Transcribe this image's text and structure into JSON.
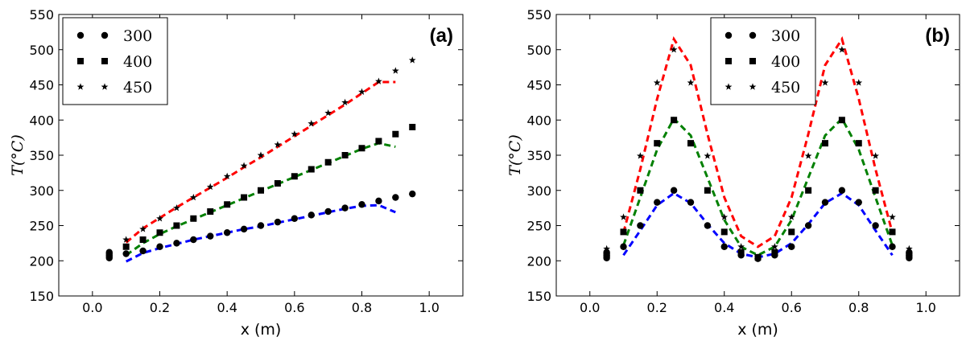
{
  "chart_data": [
    {
      "type": "line",
      "panel_label": "(a)",
      "xlabel": "x (m)",
      "ylabel": "T(°C)",
      "xlim": [
        -0.1,
        1.1
      ],
      "ylim": [
        150,
        550
      ],
      "xticks": [
        "0.0",
        "0.2",
        "0.4",
        "0.6",
        "0.8",
        "1.0"
      ],
      "yticks": [
        "150",
        "200",
        "250",
        "300",
        "350",
        "400",
        "450",
        "500",
        "550"
      ],
      "grid": false,
      "legend": {
        "placement": "top-left",
        "entries": [
          "300",
          "400",
          "450"
        ]
      },
      "series": [
        {
          "name": "300",
          "color": "#0000ff",
          "marker": "circle",
          "points": [
            [
              0.05,
              204
            ],
            [
              0.05,
              206
            ],
            [
              0.05,
              208
            ],
            [
              0.05,
              210
            ],
            [
              0.05,
              212
            ],
            [
              0.1,
              210
            ],
            [
              0.15,
              214
            ],
            [
              0.2,
              220
            ],
            [
              0.25,
              225
            ],
            [
              0.3,
              230
            ],
            [
              0.35,
              235
            ],
            [
              0.4,
              240
            ],
            [
              0.45,
              245
            ],
            [
              0.5,
              250
            ],
            [
              0.55,
              255
            ],
            [
              0.6,
              260
            ],
            [
              0.65,
              265
            ],
            [
              0.7,
              270
            ],
            [
              0.75,
              275
            ],
            [
              0.8,
              280
            ],
            [
              0.85,
              285
            ],
            [
              0.9,
              290
            ],
            [
              0.95,
              295
            ]
          ],
          "line": [
            [
              0.1,
              199
            ],
            [
              0.15,
              211
            ],
            [
              0.2,
              218
            ],
            [
              0.25,
              224
            ],
            [
              0.3,
              230
            ],
            [
              0.35,
              235
            ],
            [
              0.4,
              240
            ],
            [
              0.45,
              245
            ],
            [
              0.5,
              249
            ],
            [
              0.55,
              254
            ],
            [
              0.6,
              259
            ],
            [
              0.65,
              264
            ],
            [
              0.7,
              269
            ],
            [
              0.75,
              274
            ],
            [
              0.8,
              278
            ],
            [
              0.85,
              279
            ],
            [
              0.9,
              269
            ]
          ]
        },
        {
          "name": "400",
          "color": "#008000",
          "marker": "square",
          "points": [
            [
              0.1,
              220
            ],
            [
              0.15,
              230
            ],
            [
              0.2,
              240
            ],
            [
              0.25,
              250
            ],
            [
              0.3,
              260
            ],
            [
              0.35,
              270
            ],
            [
              0.4,
              280
            ],
            [
              0.45,
              290
            ],
            [
              0.5,
              300
            ],
            [
              0.55,
              310
            ],
            [
              0.6,
              320
            ],
            [
              0.65,
              330
            ],
            [
              0.7,
              340
            ],
            [
              0.75,
              350
            ],
            [
              0.8,
              360
            ],
            [
              0.85,
              370
            ],
            [
              0.9,
              380
            ],
            [
              0.95,
              390
            ]
          ],
          "line": [
            [
              0.1,
              208
            ],
            [
              0.15,
              225
            ],
            [
              0.2,
              238
            ],
            [
              0.25,
              249
            ],
            [
              0.3,
              259
            ],
            [
              0.35,
              269
            ],
            [
              0.4,
              279
            ],
            [
              0.45,
              289
            ],
            [
              0.5,
              299
            ],
            [
              0.55,
              309
            ],
            [
              0.6,
              319
            ],
            [
              0.65,
              329
            ],
            [
              0.7,
              339
            ],
            [
              0.75,
              349
            ],
            [
              0.8,
              359
            ],
            [
              0.85,
              367
            ],
            [
              0.9,
              362
            ]
          ]
        },
        {
          "name": "450",
          "color": "#ff0000",
          "marker": "star",
          "points": [
            [
              0.1,
              230
            ],
            [
              0.15,
              245
            ],
            [
              0.2,
              260
            ],
            [
              0.25,
              275
            ],
            [
              0.3,
              290
            ],
            [
              0.35,
              305
            ],
            [
              0.4,
              320
            ],
            [
              0.45,
              335
            ],
            [
              0.5,
              350
            ],
            [
              0.55,
              365
            ],
            [
              0.6,
              380
            ],
            [
              0.65,
              395
            ],
            [
              0.7,
              410
            ],
            [
              0.75,
              425
            ],
            [
              0.8,
              440
            ],
            [
              0.85,
              455
            ],
            [
              0.9,
              470
            ],
            [
              0.95,
              485
            ]
          ],
          "line": [
            [
              0.1,
              226
            ],
            [
              0.15,
              246
            ],
            [
              0.2,
              261
            ],
            [
              0.25,
              276
            ],
            [
              0.3,
              290
            ],
            [
              0.35,
              304
            ],
            [
              0.4,
              318
            ],
            [
              0.45,
              333
            ],
            [
              0.5,
              347
            ],
            [
              0.55,
              362
            ],
            [
              0.6,
              377
            ],
            [
              0.65,
              392
            ],
            [
              0.7,
              407
            ],
            [
              0.75,
              422
            ],
            [
              0.8,
              438
            ],
            [
              0.85,
              454
            ],
            [
              0.9,
              454
            ]
          ]
        }
      ]
    },
    {
      "type": "line",
      "panel_label": "(b)",
      "xlabel": "x (m)",
      "ylabel": "T(°C)",
      "xlim": [
        -0.1,
        1.1
      ],
      "ylim": [
        150,
        550
      ],
      "xticks": [
        "0.0",
        "0.2",
        "0.4",
        "0.6",
        "0.8",
        "1.0"
      ],
      "yticks": [
        "150",
        "200",
        "250",
        "300",
        "350",
        "400",
        "450",
        "500",
        "550"
      ],
      "grid": false,
      "legend": {
        "placement": "top-center",
        "entries": [
          "300",
          "400",
          "450"
        ]
      },
      "series": [
        {
          "name": "300",
          "color": "#0000ff",
          "marker": "circle",
          "points": [
            [
              0.05,
              204
            ],
            [
              0.05,
              206
            ],
            [
              0.05,
              208
            ],
            [
              0.05,
              210
            ],
            [
              0.05,
              212
            ],
            [
              0.1,
              220
            ],
            [
              0.15,
              250
            ],
            [
              0.2,
              283
            ],
            [
              0.25,
              300
            ],
            [
              0.3,
              283
            ],
            [
              0.35,
              250
            ],
            [
              0.4,
              220
            ],
            [
              0.45,
              208
            ],
            [
              0.5,
              203
            ],
            [
              0.55,
              208
            ],
            [
              0.6,
              220
            ],
            [
              0.65,
              250
            ],
            [
              0.7,
              283
            ],
            [
              0.75,
              300
            ],
            [
              0.8,
              283
            ],
            [
              0.85,
              250
            ],
            [
              0.9,
              220
            ],
            [
              0.95,
              204
            ],
            [
              0.95,
              206
            ],
            [
              0.95,
              208
            ],
            [
              0.95,
              210
            ],
            [
              0.95,
              212
            ]
          ],
          "line": [
            [
              0.1,
              208
            ],
            [
              0.15,
              243
            ],
            [
              0.2,
              279
            ],
            [
              0.25,
              296
            ],
            [
              0.3,
              282
            ],
            [
              0.35,
              252
            ],
            [
              0.4,
              225
            ],
            [
              0.45,
              210
            ],
            [
              0.5,
              205
            ],
            [
              0.55,
              210
            ],
            [
              0.6,
              225
            ],
            [
              0.65,
              252
            ],
            [
              0.7,
              282
            ],
            [
              0.75,
              296
            ],
            [
              0.8,
              279
            ],
            [
              0.85,
              243
            ],
            [
              0.9,
              208
            ]
          ]
        },
        {
          "name": "400",
          "color": "#008000",
          "marker": "square",
          "points": [
            [
              0.1,
              241
            ],
            [
              0.15,
              300
            ],
            [
              0.2,
              367
            ],
            [
              0.25,
              400
            ],
            [
              0.3,
              367
            ],
            [
              0.35,
              300
            ],
            [
              0.4,
              241
            ],
            [
              0.45,
              212
            ],
            [
              0.5,
              205
            ],
            [
              0.55,
              212
            ],
            [
              0.6,
              241
            ],
            [
              0.65,
              300
            ],
            [
              0.7,
              367
            ],
            [
              0.75,
              400
            ],
            [
              0.8,
              367
            ],
            [
              0.85,
              300
            ],
            [
              0.9,
              241
            ]
          ],
          "line": [
            [
              0.1,
              222
            ],
            [
              0.15,
              290
            ],
            [
              0.2,
              358
            ],
            [
              0.25,
              402
            ],
            [
              0.3,
              378
            ],
            [
              0.35,
              318
            ],
            [
              0.4,
              258
            ],
            [
              0.45,
              220
            ],
            [
              0.5,
              208
            ],
            [
              0.55,
              220
            ],
            [
              0.6,
              258
            ],
            [
              0.65,
              318
            ],
            [
              0.7,
              378
            ],
            [
              0.75,
              402
            ],
            [
              0.8,
              358
            ],
            [
              0.85,
              290
            ],
            [
              0.9,
              222
            ]
          ]
        },
        {
          "name": "450",
          "color": "#ff0000",
          "marker": "star",
          "points": [
            [
              0.05,
              217
            ],
            [
              0.1,
              262
            ],
            [
              0.15,
              349
            ],
            [
              0.2,
              453
            ],
            [
              0.25,
              500
            ],
            [
              0.3,
              453
            ],
            [
              0.35,
              349
            ],
            [
              0.4,
              262
            ],
            [
              0.45,
              220
            ],
            [
              0.5,
              205
            ],
            [
              0.55,
              220
            ],
            [
              0.6,
              262
            ],
            [
              0.65,
              349
            ],
            [
              0.7,
              453
            ],
            [
              0.75,
              500
            ],
            [
              0.8,
              453
            ],
            [
              0.85,
              349
            ],
            [
              0.9,
              262
            ],
            [
              0.95,
              217
            ]
          ],
          "line": [
            [
              0.1,
              240
            ],
            [
              0.15,
              330
            ],
            [
              0.2,
              430
            ],
            [
              0.25,
              515
            ],
            [
              0.3,
              478
            ],
            [
              0.35,
              380
            ],
            [
              0.4,
              290
            ],
            [
              0.45,
              235
            ],
            [
              0.5,
              220
            ],
            [
              0.55,
              235
            ],
            [
              0.6,
              290
            ],
            [
              0.65,
              380
            ],
            [
              0.7,
              478
            ],
            [
              0.75,
              515
            ],
            [
              0.8,
              430
            ],
            [
              0.85,
              330
            ],
            [
              0.9,
              240
            ]
          ]
        }
      ]
    }
  ]
}
